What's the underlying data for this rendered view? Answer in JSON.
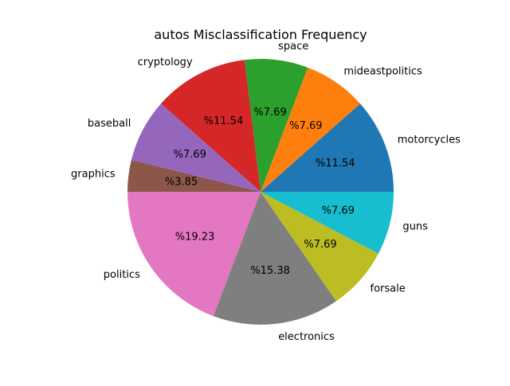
{
  "chart_data": {
    "type": "pie",
    "title": "autos Misclassification Frequency",
    "slices": [
      {
        "label": "motorcycles",
        "percent_label": "%11.54",
        "value": 11.54,
        "color": "#1f77b4"
      },
      {
        "label": "mideastpolitics",
        "percent_label": "%7.69",
        "value": 7.69,
        "color": "#ff7f0e"
      },
      {
        "label": "space",
        "percent_label": "%7.69",
        "value": 7.69,
        "color": "#2ca02c"
      },
      {
        "label": "cryptology",
        "percent_label": "%11.54",
        "value": 11.54,
        "color": "#d62728"
      },
      {
        "label": "baseball",
        "percent_label": "%7.69",
        "value": 7.69,
        "color": "#9467bd"
      },
      {
        "label": "graphics",
        "percent_label": "%3.85",
        "value": 3.85,
        "color": "#8c564b"
      },
      {
        "label": "politics",
        "percent_label": "%19.23",
        "value": 19.23,
        "color": "#e377c2"
      },
      {
        "label": "electronics",
        "percent_label": "%15.38",
        "value": 15.38,
        "color": "#7f7f7f"
      },
      {
        "label": "forsale",
        "percent_label": "%7.69",
        "value": 7.69,
        "color": "#bcbd22"
      },
      {
        "label": "guns",
        "percent_label": "%7.69",
        "value": 7.69,
        "color": "#17becf"
      }
    ],
    "start_angle_deg": 0,
    "direction": "counterclockwise",
    "legend": "none"
  }
}
